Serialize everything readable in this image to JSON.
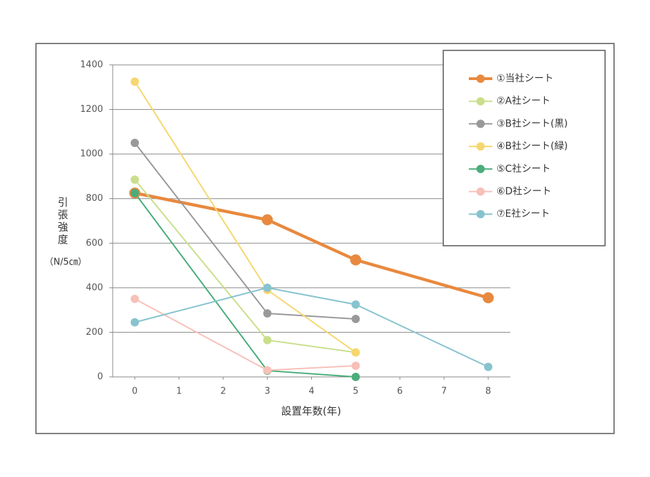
{
  "chart_data": {
    "type": "line",
    "y_label": "引張強度",
    "y_unit": "（N/5㎝）",
    "x_label": "設置年数(年)",
    "x": [
      0,
      3,
      5,
      8
    ],
    "xlim": [
      -0.5,
      8.5
    ],
    "xticks": [
      0,
      1,
      2,
      3,
      4,
      5,
      6,
      7,
      8
    ],
    "ylim": [
      0,
      1400
    ],
    "yticks": [
      0,
      200,
      400,
      600,
      800,
      1000,
      1200,
      1400
    ],
    "grid": true,
    "legend": "upper right",
    "series": [
      {
        "name": "①当社シート",
        "color": "#e8893f",
        "values": [
          825,
          705,
          525,
          355
        ]
      },
      {
        "name": "②A社シート",
        "color": "#c9df8a",
        "values": [
          885,
          165,
          110,
          null
        ]
      },
      {
        "name": "③B社シート(黒)",
        "color": "#999999",
        "values": [
          1050,
          285,
          260,
          null
        ]
      },
      {
        "name": "④B社シート(緑)",
        "color": "#f5d76e",
        "values": [
          1325,
          390,
          110,
          null
        ]
      },
      {
        "name": "⑤C社シート",
        "color": "#4aad7a",
        "values": [
          825,
          28,
          0,
          null
        ]
      },
      {
        "name": "⑥D社シート",
        "color": "#f7c0b8",
        "values": [
          350,
          30,
          50,
          null
        ]
      },
      {
        "name": "⑦E社シート",
        "color": "#86c3cf",
        "values": [
          245,
          400,
          325,
          45
        ]
      }
    ]
  }
}
